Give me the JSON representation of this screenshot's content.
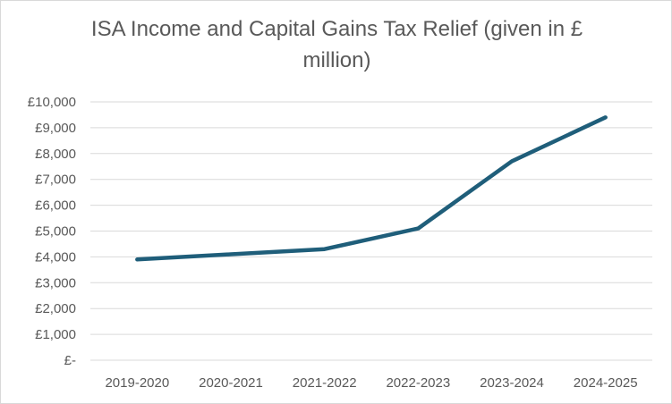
{
  "chart_data": {
    "type": "line",
    "title": "ISA Income and Capital Gains Tax Relief (given in £ million)",
    "xlabel": "",
    "ylabel": "",
    "categories": [
      "2019-2020",
      "2020-2021",
      "2021-2022",
      "2022-2023",
      "2023-2024",
      "2024-2025"
    ],
    "series": [
      {
        "values": [
          3900,
          4100,
          4300,
          5100,
          7700,
          9400
        ],
        "color": "#1f5e7a"
      }
    ],
    "ylim": [
      0,
      10000
    ],
    "yticks": [
      0,
      1000,
      2000,
      3000,
      4000,
      5000,
      6000,
      7000,
      8000,
      9000,
      10000
    ],
    "ytick_labels": [
      "£-",
      "£1,000",
      "£2,000",
      "£3,000",
      "£4,000",
      "£5,000",
      "£6,000",
      "£7,000",
      "£8,000",
      "£9,000",
      "£10,000"
    ],
    "grid": true,
    "grid_color": "#d9d9d9",
    "legend": "none"
  }
}
